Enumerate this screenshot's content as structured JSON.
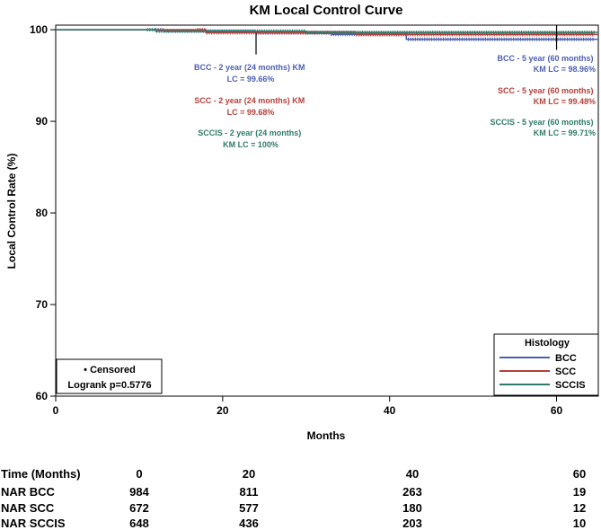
{
  "chart_data": {
    "type": "line",
    "title": "KM Local Control Curve",
    "xlabel": "Months",
    "ylabel": "Local Control Rate (%)",
    "xlim": [
      0,
      65
    ],
    "ylim": [
      60,
      100.5
    ],
    "x_ticks": [
      "0",
      "20",
      "40",
      "60"
    ],
    "y_ticks": [
      "60",
      "70",
      "80",
      "90",
      "100"
    ],
    "grid": false,
    "colors": {
      "BCC": "#4d5fb0",
      "SCC": "#b5403a",
      "SCCIS": "#2e7a6a",
      "axis": "#000000"
    },
    "series": [
      {
        "name": "BCC",
        "steps": [
          [
            0,
            100
          ],
          [
            13,
            99.9
          ],
          [
            18,
            99.8
          ],
          [
            24,
            99.66
          ],
          [
            33,
            99.5
          ],
          [
            42,
            98.96
          ],
          [
            65,
            98.96
          ]
        ]
      },
      {
        "name": "SCC",
        "steps": [
          [
            0,
            100
          ],
          [
            18,
            99.68
          ],
          [
            36,
            99.48
          ],
          [
            65,
            99.48
          ]
        ]
      },
      {
        "name": "SCCIS",
        "steps": [
          [
            0,
            100
          ],
          [
            12,
            99.85
          ],
          [
            30,
            99.71
          ],
          [
            65,
            99.71
          ]
        ]
      }
    ],
    "markers": [
      {
        "x": 24,
        "y_top": 99.66,
        "y_bottom": 97.3
      },
      {
        "x": 60,
        "y_top": 100.5,
        "y_bottom": 97.8
      }
    ],
    "annotations": [
      {
        "series": "BCC",
        "lines": [
          "BCC - 2 year (24 months) KM",
          "LC = 99.66%"
        ]
      },
      {
        "series": "SCC",
        "lines": [
          "SCC - 2 year (24 months) KM",
          "LC = 99.68%"
        ]
      },
      {
        "series": "SCCIS",
        "lines": [
          "SCCIS - 2 year (24 months)",
          "KM LC = 100%"
        ]
      },
      {
        "series": "BCC",
        "lines": [
          "BCC - 5 year (60 months)",
          "KM LC = 98.96%"
        ]
      },
      {
        "series": "SCC",
        "lines": [
          "SCC - 5 year (60 months)",
          "KM LC = 99.48%"
        ]
      },
      {
        "series": "SCCIS",
        "lines": [
          "SCCIS - 5 year (60 months)",
          "KM LC = 99.71%"
        ]
      }
    ],
    "legend": {
      "title": "Histology",
      "items": [
        "BCC",
        "SCC",
        "SCCIS"
      ],
      "placement": "bottom-right"
    },
    "info_box": {
      "censored": "• Censored",
      "logrank": "Logrank p=0.5776",
      "placement": "bottom-left"
    },
    "nar_table": {
      "header": "Time (Months)",
      "times": [
        "0",
        "20",
        "40",
        "60"
      ],
      "rows": [
        {
          "label": "NAR BCC",
          "values": [
            "984",
            "811",
            "263",
            "19"
          ]
        },
        {
          "label": "NAR SCC",
          "values": [
            "672",
            "577",
            "180",
            "12"
          ]
        },
        {
          "label": "NAR SCCIS",
          "values": [
            "648",
            "436",
            "203",
            "10"
          ]
        }
      ]
    }
  }
}
